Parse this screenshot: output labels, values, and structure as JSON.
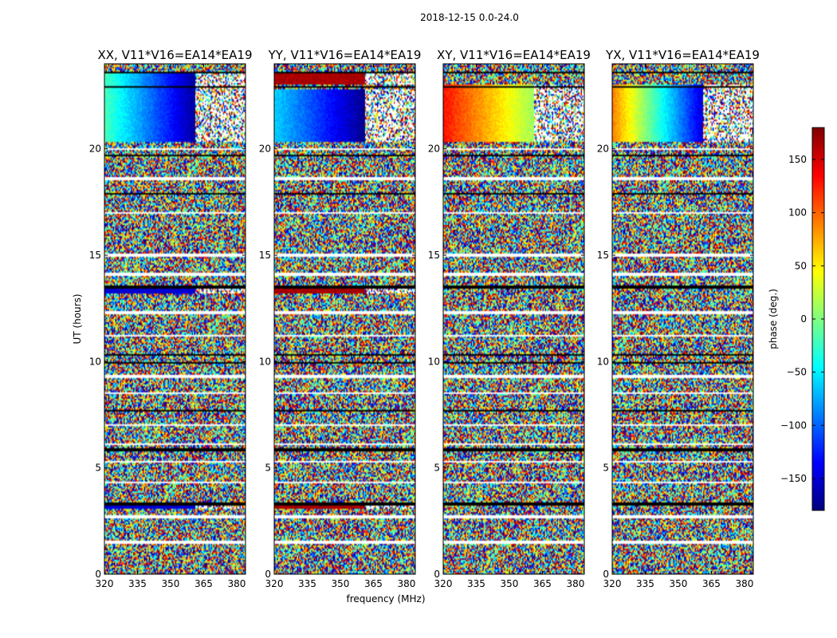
{
  "figure": {
    "suptitle": "2018-12-15 0.0-24.0",
    "xlabel": "frequency (MHz)",
    "ylabel": "UT (hours)",
    "colorbar_label": "phase (deg.)",
    "colorbar_ticks": [
      150,
      100,
      50,
      0,
      -50,
      -100,
      -150
    ],
    "colorbar_range": [
      -180,
      180
    ],
    "colormap": [
      "#00007f",
      "#0000ff",
      "#007fff",
      "#00ffff",
      "#7fff7f",
      "#ffff00",
      "#ff7f00",
      "#ff0000",
      "#7f0000"
    ]
  },
  "chart_data": [
    {
      "type": "heatmap",
      "title": "XX, V11*V16=EA14*EA19",
      "x": {
        "label": "frequency (MHz)",
        "range": [
          320,
          384
        ],
        "ticks": [
          320,
          335,
          350,
          365,
          380
        ]
      },
      "y": {
        "label": "UT (hours)",
        "range": [
          0,
          24
        ],
        "ticks": [
          0,
          5,
          10,
          15,
          20
        ]
      },
      "z": {
        "label": "phase (deg.)",
        "range": [
          -180,
          180
        ]
      },
      "coherent_bands": [
        {
          "ut_start": 20.3,
          "ut_end": 23.6,
          "phase_start": -20,
          "phase_end": -170
        },
        {
          "ut_start": 13.2,
          "ut_end": 13.6,
          "phase_start": -150,
          "phase_end": -150
        },
        {
          "ut_start": 3.1,
          "ut_end": 3.3,
          "phase_start": -150,
          "phase_end": -150
        }
      ]
    },
    {
      "type": "heatmap",
      "title": "YY, V11*V16=EA14*EA19",
      "x": {
        "label": "",
        "range": [
          320,
          384
        ],
        "ticks": [
          320,
          335,
          350,
          365,
          380
        ]
      },
      "y": {
        "label": "",
        "range": [
          0,
          24
        ],
        "ticks": [
          0,
          5,
          10,
          15,
          20
        ]
      },
      "z": {
        "label": "phase (deg.)",
        "range": [
          -180,
          180
        ]
      },
      "coherent_bands": [
        {
          "ut_start": 20.3,
          "ut_end": 22.8,
          "phase_start": -60,
          "phase_end": -175
        },
        {
          "ut_start": 23.0,
          "ut_end": 23.6,
          "phase_start": 165,
          "phase_end": 165
        },
        {
          "ut_start": 13.2,
          "ut_end": 13.6,
          "phase_start": 165,
          "phase_end": 165
        },
        {
          "ut_start": 3.1,
          "ut_end": 3.3,
          "phase_start": 165,
          "phase_end": 165
        }
      ]
    },
    {
      "type": "heatmap",
      "title": "XY, V11*V16=EA14*EA19",
      "x": {
        "label": "",
        "range": [
          320,
          384
        ],
        "ticks": [
          320,
          335,
          350,
          365,
          380
        ]
      },
      "y": {
        "label": "",
        "range": [
          0,
          24
        ],
        "ticks": [
          0,
          5,
          10,
          15,
          20
        ]
      },
      "z": {
        "label": "phase (deg.)",
        "range": [
          -180,
          180
        ]
      },
      "coherent_bands": [
        {
          "ut_start": 20.3,
          "ut_end": 23.0,
          "phase_start": 130,
          "phase_end": 10
        }
      ]
    },
    {
      "type": "heatmap",
      "title": "YX, V11*V16=EA14*EA19",
      "x": {
        "label": "",
        "range": [
          320,
          384
        ],
        "ticks": [
          320,
          335,
          350,
          365,
          380
        ]
      },
      "y": {
        "label": "",
        "range": [
          0,
          24
        ],
        "ticks": [
          0,
          5,
          10,
          15,
          20
        ]
      },
      "z": {
        "label": "phase (deg.)",
        "range": [
          -180,
          180
        ]
      },
      "coherent_bands": [
        {
          "ut_start": 20.3,
          "ut_end": 23.0,
          "phase_start": 90,
          "phase_end": -150
        }
      ]
    }
  ]
}
